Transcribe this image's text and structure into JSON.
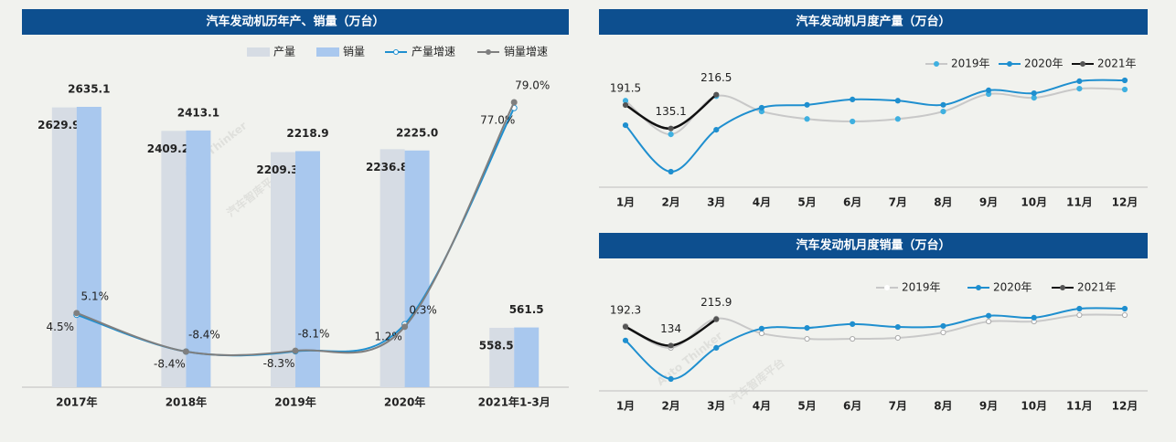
{
  "watermark": {
    "brand": "Auto Thinker",
    "tagline": "汽车智库平台"
  },
  "chart_data": [
    {
      "type": "combo",
      "title": "汽车发动机历年产、销量（万台）",
      "categories": [
        "2017年",
        "2018年",
        "2019年",
        "2020年",
        "2021年1-3月"
      ],
      "series": [
        {
          "name": "产量",
          "type": "bar",
          "color": "#d6dce4",
          "values": [
            2629.9,
            2409.2,
            2209.3,
            2236.8,
            558.5
          ]
        },
        {
          "name": "销量",
          "type": "bar",
          "color": "#a9c8ee",
          "values": [
            2635.1,
            2413.1,
            2218.9,
            2225.0,
            561.5
          ],
          "value_labels": [
            "2635.1",
            "2413.1",
            "2218.9",
            "2225.0",
            "561.5"
          ]
        },
        {
          "name": "产量增速",
          "type": "line",
          "axis": "y2",
          "color": "#1f8fcf",
          "marker": "open",
          "values": [
            4.5,
            -8.4,
            -8.3,
            1.2,
            77.0
          ],
          "value_labels": [
            "4.5%",
            "-8.4%",
            "-8.3%",
            "1.2%",
            "77.0%"
          ]
        },
        {
          "name": "销量增速",
          "type": "line",
          "axis": "y2",
          "color": "#7f7f7f",
          "marker": "filled",
          "values": [
            5.1,
            -8.4,
            -8.1,
            0.3,
            79.0
          ],
          "value_labels": [
            "5.1%",
            "-8.4%",
            "-8.1%",
            "0.3%",
            "79.0%"
          ]
        }
      ]
    },
    {
      "type": "line",
      "title": "汽车发动机月度产量（万台）",
      "categories": [
        "1月",
        "2月",
        "3月",
        "4月",
        "5月",
        "6月",
        "7月",
        "8月",
        "9月",
        "10月",
        "11月",
        "12月"
      ],
      "series": [
        {
          "name": "2019年",
          "color": "#c8c8c8",
          "marker_color": "#3fb0e0",
          "values": [
            202,
            121,
            213,
            176,
            158,
            152,
            158,
            176,
            218,
            209,
            231,
            229
          ]
        },
        {
          "name": "2020年",
          "color": "#1f8fcf",
          "marker_color": "#1f8fcf",
          "values": [
            143,
            31,
            132,
            185,
            192,
            205,
            202,
            192,
            227,
            220,
            249,
            251
          ]
        },
        {
          "name": "2021年",
          "color": "#111111",
          "marker_color": "#555555",
          "data_labels": true,
          "values": [
            191.5,
            135.1,
            216.5,
            null,
            null,
            null,
            null,
            null,
            null,
            null,
            null,
            null
          ]
        }
      ]
    },
    {
      "type": "line",
      "title": "汽车发动机月度销量（万台）",
      "categories": [
        "1月",
        "2月",
        "3月",
        "4月",
        "5月",
        "6月",
        "7月",
        "8月",
        "9月",
        "10月",
        "11月",
        "12月"
      ],
      "series": [
        {
          "name": "2019年",
          "color": "#c8c8c8",
          "marker_color": "#ffffff",
          "values": [
            195,
            127,
            218,
            172,
            155,
            155,
            158,
            175,
            209,
            209,
            229,
            229
          ]
        },
        {
          "name": "2020年",
          "color": "#1f8fcf",
          "marker_color": "#1f8fcf",
          "values": [
            150,
            30,
            127,
            187,
            189,
            201,
            192,
            195,
            227,
            221,
            249,
            249
          ]
        },
        {
          "name": "2021年",
          "color": "#111111",
          "marker_color": "#555555",
          "data_labels": true,
          "values": [
            192.3,
            134.0,
            215.9,
            null,
            null,
            null,
            null,
            null,
            null,
            null,
            null,
            null
          ]
        }
      ]
    }
  ]
}
